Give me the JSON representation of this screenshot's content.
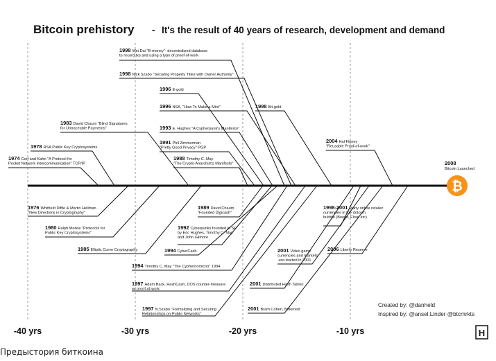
{
  "title": "Bitcoin prehistory",
  "separator": "-",
  "subtitle": "It's the result of 40 years of research, development and demand",
  "axis_labels": [
    "-40 yrs",
    "-30 yrs",
    "-20 yrs",
    "-10 yrs"
  ],
  "end_event": {
    "year": "2008",
    "label": "Bitcoin Launched",
    "icon": "bitcoin-icon",
    "color": "#f7931a"
  },
  "credits": {
    "created": "Created by: @danheld",
    "inspired": "Inspired by: @ansel.Linder @btcmrkts"
  },
  "caption": "Предыстория биткоина",
  "logo": "H",
  "top_events": [
    {
      "year": "1998",
      "lines": [
        "Wei Dai \"B-money\"- decentralized database",
        "to record txs and using a type of proof-of-work"
      ]
    },
    {
      "year": "1998",
      "lines": [
        "Nick Szabo \"Securing Property Titles with Owner Authority\""
      ]
    },
    {
      "year": "1996",
      "lines": [
        "E-gold"
      ]
    },
    {
      "year": "1996",
      "lines": [
        "NSA, \"How To Make a Mint\""
      ]
    },
    {
      "year": "1998",
      "lines": [
        "Bit-gold"
      ]
    },
    {
      "year": "1983",
      "lines": [
        "David Chaum \"Blind Signatures",
        "for Untraceable Payments\""
      ]
    },
    {
      "year": "1993",
      "lines": [
        "E. Hughes \"A Cypherpunk's Manifesto\""
      ]
    },
    {
      "year": "1978",
      "lines": [
        "RSA Public Key Cryptosystems"
      ]
    },
    {
      "year": "1991",
      "lines": [
        "Phil Zimmerman",
        "\"Pretty Good Privacy\" PGP"
      ]
    },
    {
      "year": "2004",
      "lines": [
        "Hal Finney",
        "\"Reusable Proof-of-work\""
      ]
    },
    {
      "year": "1974",
      "lines": [
        "Cerf and Kahn \"A Protocol for",
        "Pocket Network Intercommunication\" TCP/IP"
      ]
    },
    {
      "year": "1988",
      "lines": [
        "Timothy C. May",
        "\"The Crypto-Anarchist's Manifesto\""
      ]
    }
  ],
  "bottom_events": [
    {
      "year": "1976",
      "lines": [
        "Whitfield Diffie & Martin Hellman",
        "\"New Directions in Cryptography\""
      ]
    },
    {
      "year": "1989",
      "lines": [
        "David Chaum",
        "\"Founded Digicash\""
      ]
    },
    {
      "year": "1998-2001",
      "lines": [
        "Many online retailer",
        "currencies in the dotcom",
        "bubble (Beenz, Floor etc)"
      ]
    },
    {
      "year": "1980",
      "lines": [
        "Ralph Merkle \"Protocols for",
        "Public Key Cryptosystems\""
      ]
    },
    {
      "year": "1992",
      "lines": [
        "Cyberpunks founded in SF",
        "by Eric Hughes, Timothy C. May",
        "and John Gilmore"
      ]
    },
    {
      "year": "1985",
      "lines": [
        "Elliptic Curve Cryptography"
      ]
    },
    {
      "year": "1994",
      "lines": [
        "CyberCash"
      ]
    },
    {
      "year": "2001",
      "lines": [
        "Video game",
        "currencies and markets",
        "-era started in 2001"
      ]
    },
    {
      "year": "2006",
      "lines": [
        "Liberty Reserve"
      ]
    },
    {
      "year": "1994",
      "lines": [
        "Timothy C. May \"The Cyphernomicon\" 1994"
      ]
    },
    {
      "year": "1997",
      "lines": [
        "Adam Back, HashCash, DOS counter-measure",
        "w/ proof-of-work"
      ]
    },
    {
      "year": "2001",
      "lines": [
        "Distributed Hash Tables"
      ]
    },
    {
      "year": "1997",
      "lines": [
        "N.Szabo \"Formalizing and Securing",
        "Relationships on Public Networks\""
      ]
    },
    {
      "year": "2001",
      "lines": [
        "Bram Cohen, Bittorrent"
      ]
    }
  ]
}
